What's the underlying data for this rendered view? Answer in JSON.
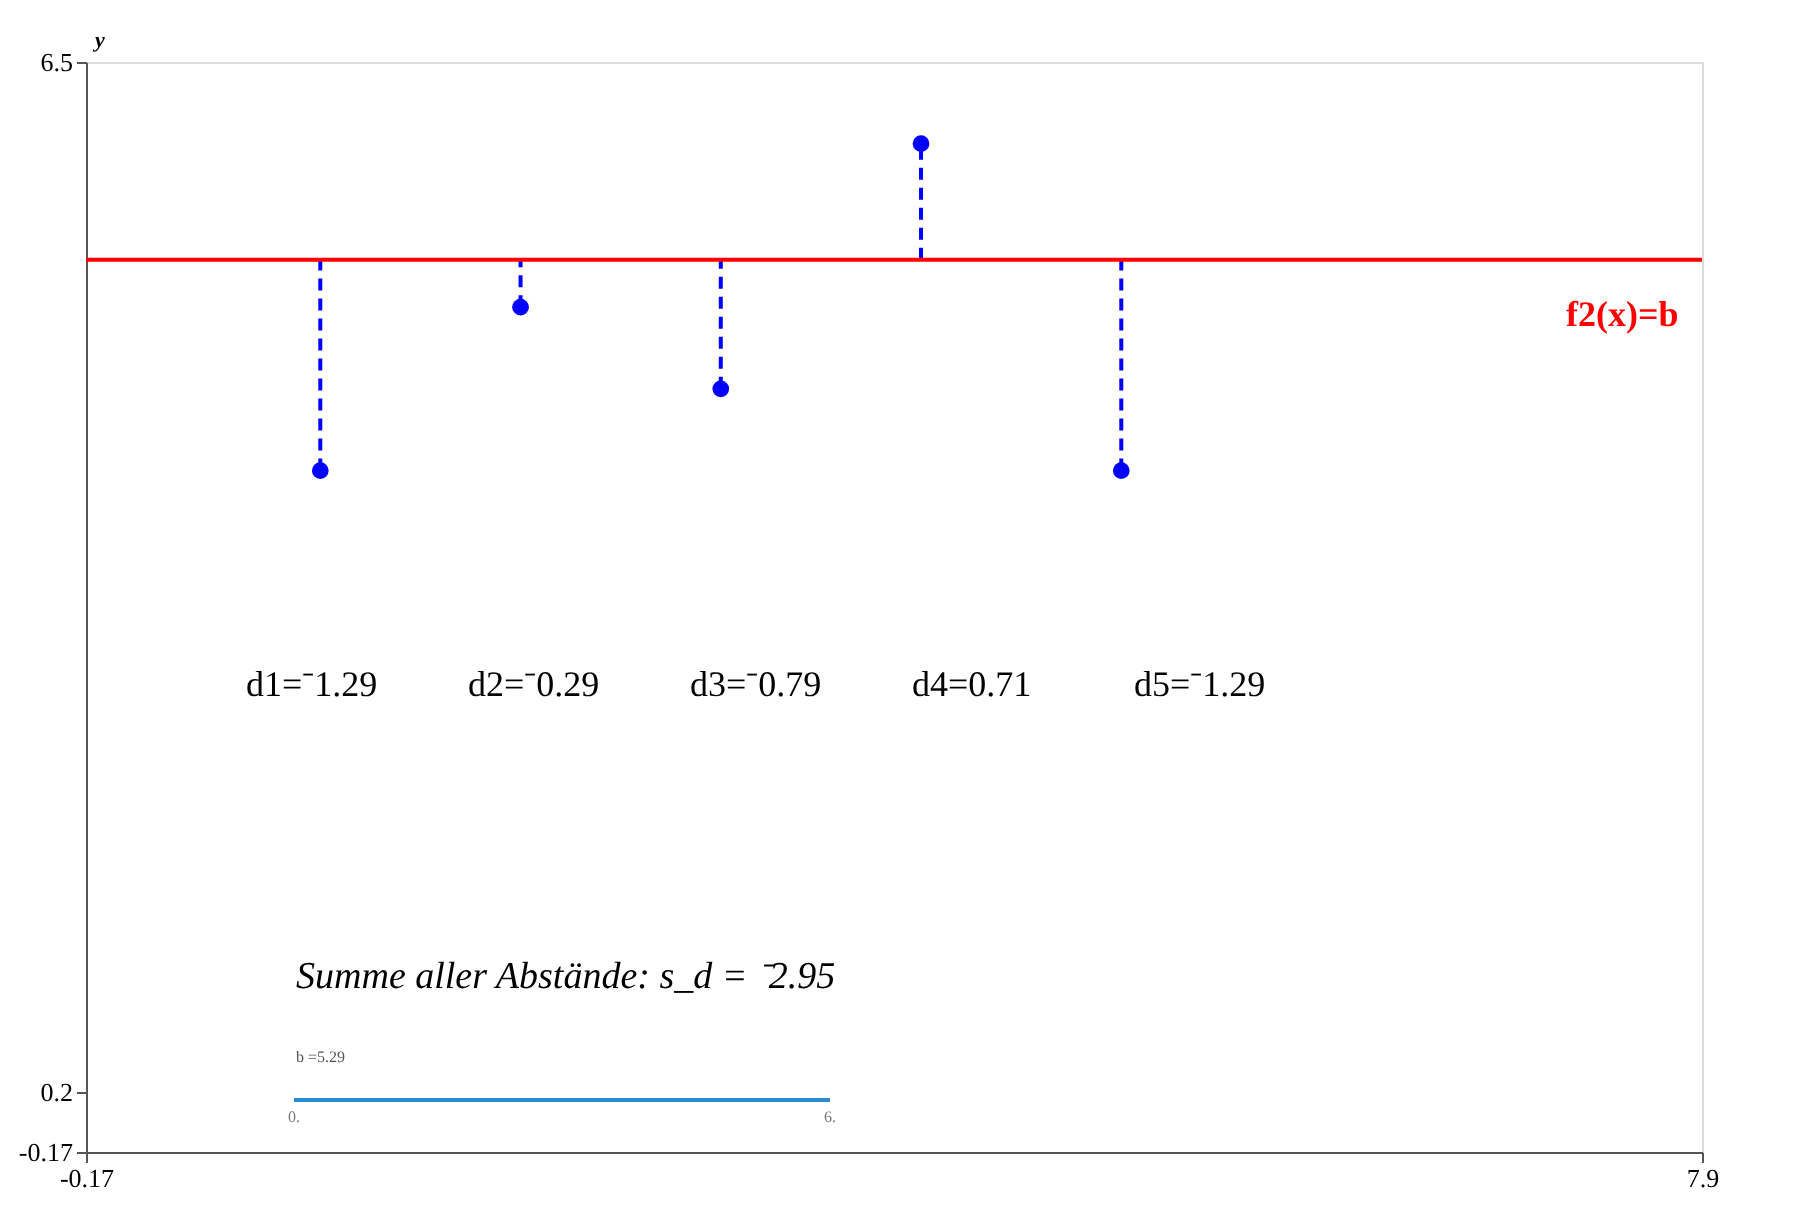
{
  "chart_data": {
    "type": "scatter",
    "ylabel": "y",
    "x": [
      1,
      2,
      3,
      4,
      5
    ],
    "series": [
      {
        "color": "#0000ff",
        "values": [
          4.0,
          5.0,
          4.5,
          6.0,
          4.0
        ],
        "errors": [
          [
            4.0,
            5.29
          ],
          [
            5.0,
            5.29
          ],
          [
            4.5,
            5.29
          ],
          [
            5.29,
            6.0
          ],
          [
            4.0,
            5.29
          ]
        ]
      }
    ],
    "marker": "circle",
    "grid": false,
    "xlim": [
      -0.17,
      7.9
    ],
    "xticks": [
      -0.17,
      7.9
    ],
    "ylim": [
      -0.17,
      6.5
    ],
    "yticks": [
      -0.17,
      0.2,
      6.5
    ],
    "ref_lines": [
      {
        "axis": "y",
        "value": 5.29,
        "label": "f2(x)=b",
        "color": "#ff0000"
      }
    ],
    "annotations": [
      "d1=⁻1.29",
      "d2=⁻0.29",
      "d3=⁻0.79",
      "d4=0.71",
      "d5=⁻1.29",
      "Summe aller Abstände:  s_d = ⁻2.95",
      "b =5.29",
      "0.",
      "6."
    ]
  }
}
